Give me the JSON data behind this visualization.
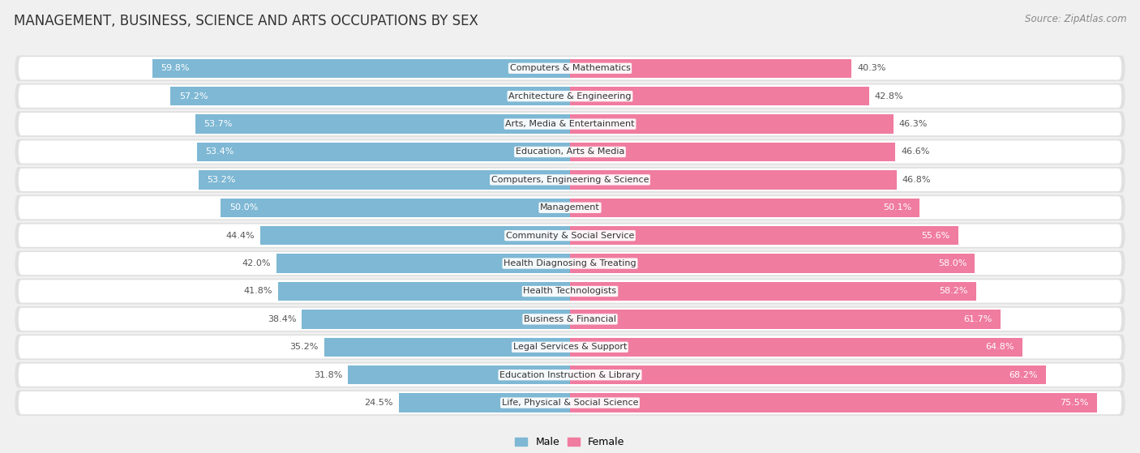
{
  "title": "MANAGEMENT, BUSINESS, SCIENCE AND ARTS OCCUPATIONS BY SEX",
  "source": "Source: ZipAtlas.com",
  "categories": [
    "Computers & Mathematics",
    "Architecture & Engineering",
    "Arts, Media & Entertainment",
    "Education, Arts & Media",
    "Computers, Engineering & Science",
    "Management",
    "Community & Social Service",
    "Health Diagnosing & Treating",
    "Health Technologists",
    "Business & Financial",
    "Legal Services & Support",
    "Education Instruction & Library",
    "Life, Physical & Social Science"
  ],
  "male_pct": [
    59.8,
    57.2,
    53.7,
    53.4,
    53.2,
    50.0,
    44.4,
    42.0,
    41.8,
    38.4,
    35.2,
    31.8,
    24.5
  ],
  "female_pct": [
    40.3,
    42.8,
    46.3,
    46.6,
    46.8,
    50.1,
    55.6,
    58.0,
    58.2,
    61.7,
    64.8,
    68.2,
    75.5
  ],
  "male_color": "#7eb8d4",
  "female_color": "#f07ca0",
  "bg_color": "#f0f0f0",
  "row_bg_color": "#e8e8e8",
  "bar_bg_color": "#ffffff",
  "axis_min": -80.0,
  "axis_max": 80.0,
  "legend_male": "Male",
  "legend_female": "Female",
  "title_fontsize": 12,
  "source_fontsize": 8.5,
  "label_fontsize": 8,
  "category_fontsize": 8
}
